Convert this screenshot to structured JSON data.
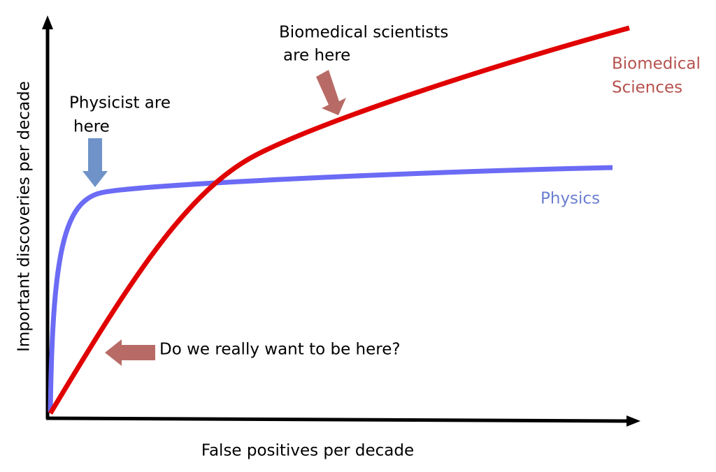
{
  "y_axis_label": "Important discoveries per decade",
  "x_axis_label": "False positives per decade",
  "annotations": {
    "biomedical_here": [
      "Biomedical scientists",
      "are here"
    ],
    "physicist_here": [
      "Physicist are",
      "here"
    ],
    "question": "Do we really want to be here?"
  },
  "curve_labels": {
    "biomedical": [
      "Biomedical",
      "Sciences"
    ],
    "physics": "Physics"
  }
}
